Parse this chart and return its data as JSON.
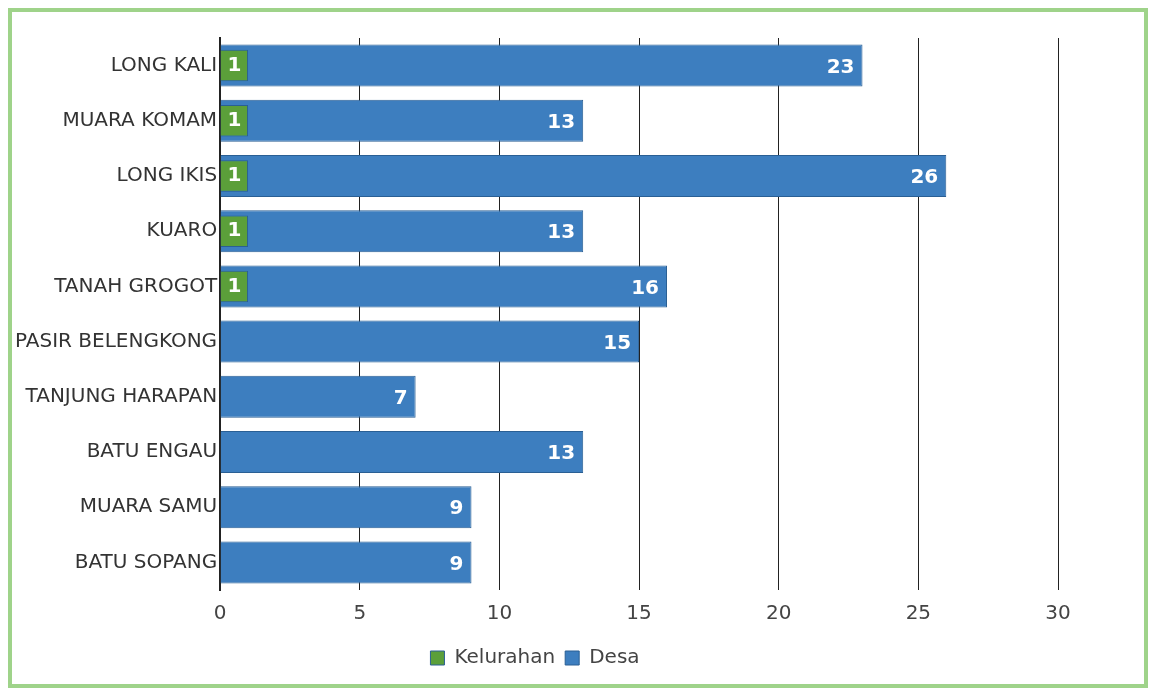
{
  "chart_data": {
    "type": "bar",
    "orientation": "horizontal",
    "categories": [
      "LONG KALI",
      "MUARA KOMAM",
      "LONG IKIS",
      "KUARO",
      "TANAH GROGOT",
      "PASIR BELENGKONG",
      "TANJUNG HARAPAN",
      "BATU ENGAU",
      "MUARA SAMU",
      "BATU SOPANG"
    ],
    "series": [
      {
        "name": "Kelurahan",
        "color": "#5b9f3a",
        "values": [
          1,
          1,
          1,
          1,
          1,
          null,
          null,
          null,
          null,
          null
        ]
      },
      {
        "name": "Desa",
        "color": "#3d7ebf",
        "values": [
          23,
          13,
          26,
          13,
          16,
          15,
          7,
          13,
          9,
          9
        ]
      }
    ],
    "xlim": [
      0,
      30
    ],
    "xticks": [
      0,
      5,
      10,
      15,
      20,
      25,
      30
    ],
    "grid": "x",
    "legend": "bottom",
    "data_labels": true
  }
}
